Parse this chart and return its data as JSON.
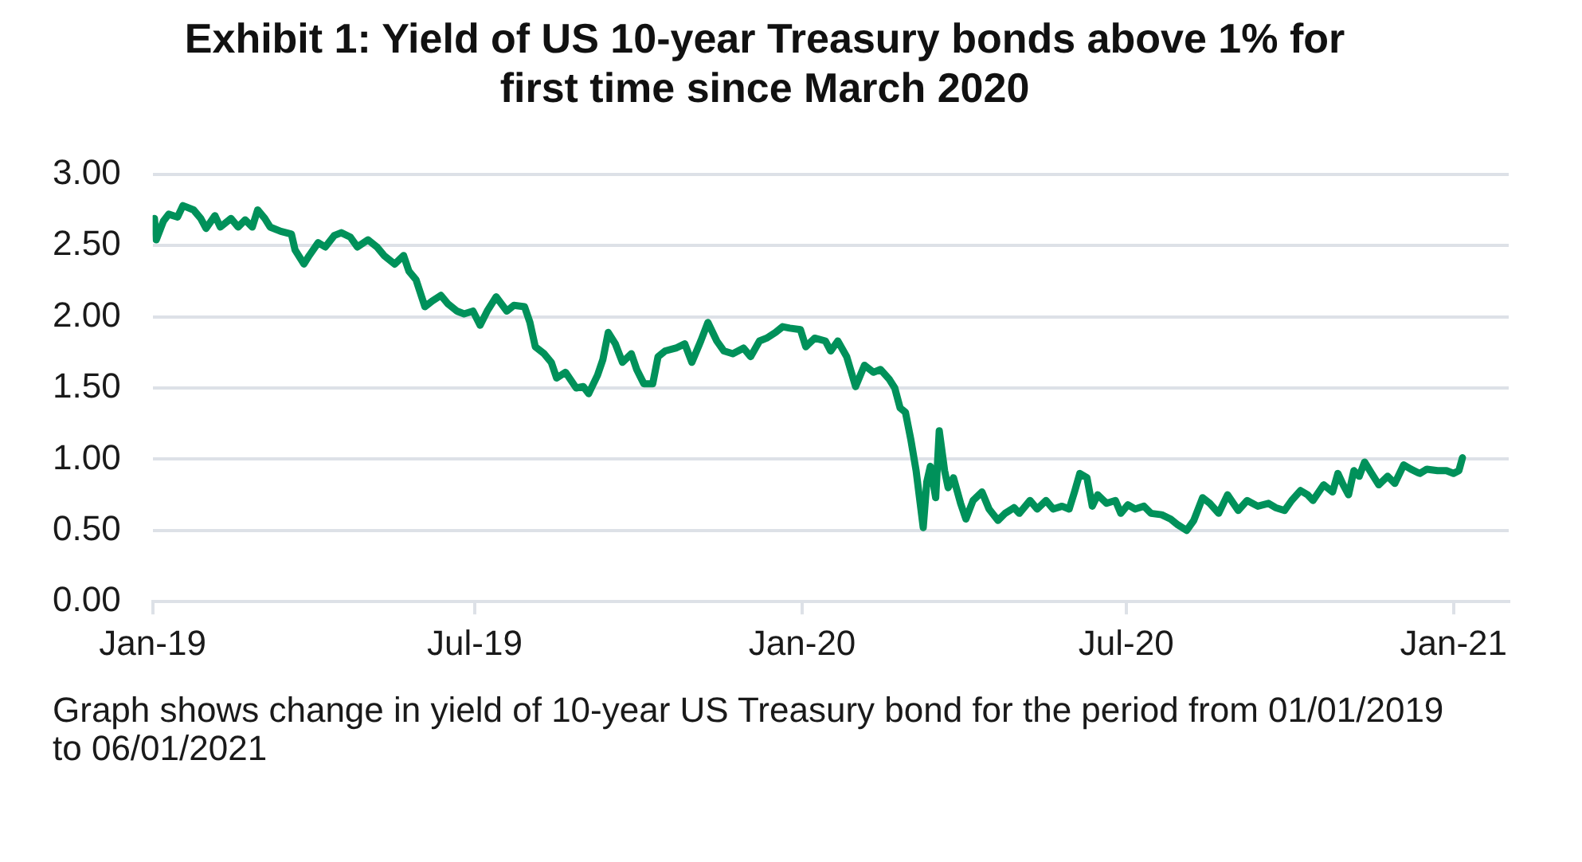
{
  "chart_data": {
    "type": "line",
    "title": "Exhibit 1: Yield of US 10-year Treasury bonds above 1% for first time since March 2020",
    "annotations": [
      "Graph shows change in yield of 10-year US Treasury bond for the period from 01/01/2019 to 06/01/2021"
    ],
    "x": [
      "2019-01-02",
      "2019-01-03",
      "2019-01-07",
      "2019-01-10",
      "2019-01-15",
      "2019-01-18",
      "2019-01-24",
      "2019-01-28",
      "2019-01-31",
      "2019-02-05",
      "2019-02-08",
      "2019-02-14",
      "2019-02-18",
      "2019-02-22",
      "2019-02-26",
      "2019-03-01",
      "2019-03-05",
      "2019-03-08",
      "2019-03-14",
      "2019-03-20",
      "2019-03-22",
      "2019-03-27",
      "2019-03-30",
      "2019-04-04",
      "2019-04-08",
      "2019-04-13",
      "2019-04-17",
      "2019-04-22",
      "2019-04-26",
      "2019-05-02",
      "2019-05-07",
      "2019-05-11",
      "2019-05-17",
      "2019-05-22",
      "2019-05-25",
      "2019-05-29",
      "2019-06-03",
      "2019-06-07",
      "2019-06-12",
      "2019-06-16",
      "2019-06-21",
      "2019-06-25",
      "2019-06-30",
      "2019-07-04",
      "2019-07-08",
      "2019-07-13",
      "2019-07-19",
      "2019-07-23",
      "2019-07-29",
      "2019-08-01",
      "2019-08-04",
      "2019-08-09",
      "2019-08-13",
      "2019-08-16",
      "2019-08-21",
      "2019-08-27",
      "2019-08-31",
      "2019-09-03",
      "2019-09-08",
      "2019-09-11",
      "2019-09-14",
      "2019-09-18",
      "2019-09-22",
      "2019-09-27",
      "2019-09-30",
      "2019-10-04",
      "2019-10-09",
      "2019-10-12",
      "2019-10-16",
      "2019-10-22",
      "2019-10-27",
      "2019-10-31",
      "2019-11-05",
      "2019-11-09",
      "2019-11-14",
      "2019-11-18",
      "2019-11-23",
      "2019-11-29",
      "2019-12-03",
      "2019-12-08",
      "2019-12-12",
      "2019-12-17",
      "2019-12-21",
      "2019-12-25",
      "2019-12-31",
      "2020-01-03",
      "2020-01-08",
      "2020-01-14",
      "2020-01-17",
      "2020-01-21",
      "2020-01-26",
      "2020-01-31",
      "2020-02-05",
      "2020-02-10",
      "2020-02-14",
      "2020-02-19",
      "2020-02-22",
      "2020-02-25",
      "2020-02-28",
      "2020-03-02",
      "2020-03-05",
      "2020-03-09",
      "2020-03-11",
      "2020-03-13",
      "2020-03-16",
      "2020-03-18",
      "2020-03-21",
      "2020-03-23",
      "2020-03-26",
      "2020-03-30",
      "2020-04-02",
      "2020-04-06",
      "2020-04-11",
      "2020-04-15",
      "2020-04-20",
      "2020-04-24",
      "2020-04-29",
      "2020-05-02",
      "2020-05-08",
      "2020-05-12",
      "2020-05-17",
      "2020-05-21",
      "2020-05-26",
      "2020-05-30",
      "2020-06-02",
      "2020-06-05",
      "2020-06-09",
      "2020-06-12",
      "2020-06-15",
      "2020-06-20",
      "2020-06-25",
      "2020-06-28",
      "2020-07-02",
      "2020-07-06",
      "2020-07-11",
      "2020-07-15",
      "2020-07-21",
      "2020-07-26",
      "2020-07-30",
      "2020-08-04",
      "2020-08-08",
      "2020-08-13",
      "2020-08-17",
      "2020-08-22",
      "2020-08-27",
      "2020-09-02",
      "2020-09-07",
      "2020-09-13",
      "2020-09-19",
      "2020-09-23",
      "2020-09-28",
      "2020-10-02",
      "2020-10-07",
      "2020-10-11",
      "2020-10-14",
      "2020-10-20",
      "2020-10-25",
      "2020-10-28",
      "2020-10-31",
      "2020-11-03",
      "2020-11-06",
      "2020-11-09",
      "2020-11-12",
      "2020-11-16",
      "2020-11-20",
      "2020-11-25",
      "2020-11-29",
      "2020-12-04",
      "2020-12-08",
      "2020-12-13",
      "2020-12-17",
      "2020-12-23",
      "2020-12-28",
      "2021-01-01",
      "2021-01-04",
      "2021-01-06"
    ],
    "values": [
      2.69,
      2.54,
      2.67,
      2.72,
      2.7,
      2.78,
      2.75,
      2.69,
      2.62,
      2.71,
      2.63,
      2.69,
      2.63,
      2.68,
      2.63,
      2.75,
      2.69,
      2.63,
      2.6,
      2.58,
      2.47,
      2.37,
      2.43,
      2.52,
      2.49,
      2.57,
      2.59,
      2.56,
      2.49,
      2.54,
      2.49,
      2.43,
      2.37,
      2.43,
      2.32,
      2.26,
      2.07,
      2.11,
      2.15,
      2.09,
      2.04,
      2.02,
      2.04,
      1.94,
      2.04,
      2.14,
      2.04,
      2.08,
      2.07,
      1.96,
      1.79,
      1.74,
      1.68,
      1.57,
      1.61,
      1.5,
      1.51,
      1.46,
      1.59,
      1.7,
      1.89,
      1.81,
      1.68,
      1.74,
      1.63,
      1.53,
      1.53,
      1.72,
      1.76,
      1.78,
      1.81,
      1.68,
      1.83,
      1.96,
      1.83,
      1.76,
      1.74,
      1.78,
      1.72,
      1.83,
      1.85,
      1.89,
      1.93,
      1.92,
      1.91,
      1.79,
      1.85,
      1.83,
      1.76,
      1.83,
      1.72,
      1.51,
      1.66,
      1.61,
      1.63,
      1.56,
      1.5,
      1.36,
      1.33,
      1.14,
      0.92,
      0.52,
      0.84,
      0.95,
      0.73,
      1.2,
      0.92,
      0.8,
      0.87,
      0.69,
      0.58,
      0.71,
      0.77,
      0.65,
      0.57,
      0.62,
      0.66,
      0.62,
      0.71,
      0.65,
      0.71,
      0.65,
      0.67,
      0.65,
      0.77,
      0.9,
      0.87,
      0.67,
      0.75,
      0.69,
      0.71,
      0.62,
      0.68,
      0.65,
      0.67,
      0.62,
      0.61,
      0.58,
      0.54,
      0.5,
      0.57,
      0.73,
      0.69,
      0.62,
      0.75,
      0.64,
      0.71,
      0.67,
      0.69,
      0.66,
      0.64,
      0.71,
      0.78,
      0.75,
      0.71,
      0.82,
      0.77,
      0.9,
      0.82,
      0.75,
      0.92,
      0.88,
      0.98,
      0.9,
      0.82,
      0.88,
      0.83,
      0.96,
      0.93,
      0.9,
      0.93,
      0.92,
      0.92,
      0.9,
      0.92,
      1.01
    ],
    "color": "#00915a",
    "xlim": [
      "2019-01-01",
      "2021-02-01"
    ],
    "xticks": [
      {
        "value": "2019-01-01",
        "label": "Jan-19"
      },
      {
        "value": "2019-07-01",
        "label": "Jul-19"
      },
      {
        "value": "2020-01-01",
        "label": "Jan-20"
      },
      {
        "value": "2020-07-01",
        "label": "Jul-20"
      },
      {
        "value": "2021-01-01",
        "label": "Jan-21"
      }
    ],
    "ylim": [
      0,
      3
    ],
    "yticks": [
      {
        "value": 0,
        "label": "0.00"
      },
      {
        "value": 0.5,
        "label": "0.50"
      },
      {
        "value": 1,
        "label": "1.00"
      },
      {
        "value": 1.5,
        "label": "1.50"
      },
      {
        "value": 2,
        "label": "2.00"
      },
      {
        "value": 2.5,
        "label": "2.50"
      },
      {
        "value": 3,
        "label": "3.00"
      }
    ],
    "grid": "y"
  }
}
